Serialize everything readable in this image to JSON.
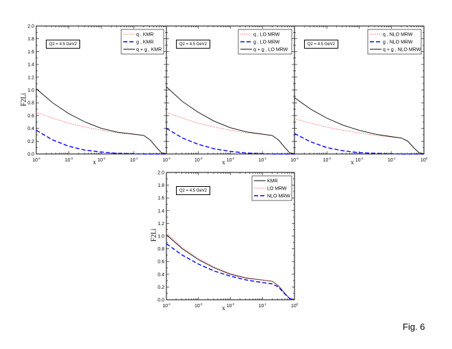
{
  "figure_label": "Fig. 6",
  "chart_data": [
    {
      "type": "line",
      "xscale": "log",
      "xlim": [
        0.0001,
        1
      ],
      "ylim": [
        0,
        2.0
      ],
      "xlabel": "x",
      "ylabel": "F2Li",
      "x_ticks": [
        "10-4",
        "10-3",
        "10-2",
        "10-1"
      ],
      "y_ticks": [
        "0.0",
        "0.2",
        "0.4",
        "0.6",
        "0.8",
        "1.0",
        "1.2",
        "1.4",
        "1.6",
        "1.8",
        "2.0"
      ],
      "annotation": "Q2 = 4.5 GeV2",
      "legend_position": "top-right",
      "x": [
        0.0001,
        0.000316,
        0.001,
        0.00316,
        0.01,
        0.0316,
        0.1,
        0.2,
        0.316,
        0.5,
        0.7,
        1
      ],
      "series": [
        {
          "name": "q , KMR",
          "color": "#ff5050",
          "style": "dotted",
          "values": [
            0.65,
            0.56,
            0.48,
            0.42,
            0.37,
            0.33,
            0.305,
            0.29,
            0.22,
            0.1,
            0.02,
            0
          ]
        },
        {
          "name": "g , KMR",
          "color": "#0000ff",
          "style": "dashed",
          "values": [
            0.37,
            0.22,
            0.12,
            0.06,
            0.03,
            0.01,
            0.003,
            0,
            0,
            0,
            0,
            0
          ]
        },
        {
          "name": "q + g , KMR",
          "color": "#000000",
          "style": "solid",
          "values": [
            1.02,
            0.8,
            0.63,
            0.5,
            0.4,
            0.34,
            0.31,
            0.29,
            0.22,
            0.1,
            0.02,
            0
          ]
        }
      ]
    },
    {
      "type": "line",
      "xscale": "log",
      "xlim": [
        0.0001,
        1
      ],
      "ylim": [
        0,
        2.0
      ],
      "xlabel": "x",
      "x_ticks": [
        "10-4",
        "10-3",
        "10-2",
        "10-1"
      ],
      "annotation": "Q2 = 4.5 GeV2",
      "legend_position": "top-right",
      "x": [
        0.0001,
        0.000316,
        0.001,
        0.00316,
        0.01,
        0.0316,
        0.1,
        0.2,
        0.316,
        0.5,
        0.7,
        1
      ],
      "series": [
        {
          "name": "q , LO MRW",
          "color": "#ff5050",
          "style": "dotted",
          "values": [
            0.65,
            0.56,
            0.48,
            0.42,
            0.37,
            0.33,
            0.305,
            0.29,
            0.22,
            0.1,
            0.02,
            0
          ]
        },
        {
          "name": "g , LO MRW",
          "color": "#0000ff",
          "style": "dashed",
          "values": [
            0.4,
            0.25,
            0.15,
            0.08,
            0.04,
            0.015,
            0.005,
            0,
            0,
            0,
            0,
            0
          ]
        },
        {
          "name": "q + g , LO MRW",
          "color": "#000000",
          "style": "solid",
          "values": [
            1.05,
            0.82,
            0.65,
            0.51,
            0.41,
            0.345,
            0.31,
            0.29,
            0.22,
            0.1,
            0.02,
            0
          ]
        }
      ]
    },
    {
      "type": "line",
      "xscale": "log",
      "xlim": [
        0.0001,
        1
      ],
      "ylim": [
        0,
        2.0
      ],
      "xlabel": "x",
      "x_ticks": [
        "10-4",
        "10-3",
        "10-2",
        "10-1",
        "100"
      ],
      "annotation": "Q2 = 4.5 GeV2",
      "legend_position": "top-right",
      "x": [
        0.0001,
        0.000316,
        0.001,
        0.00316,
        0.01,
        0.0316,
        0.1,
        0.2,
        0.316,
        0.5,
        0.7,
        1
      ],
      "series": [
        {
          "name": "q , NLO MRW",
          "color": "#ff5050",
          "style": "dotted",
          "values": [
            0.55,
            0.48,
            0.42,
            0.37,
            0.33,
            0.29,
            0.265,
            0.25,
            0.2,
            0.09,
            0.02,
            0
          ]
        },
        {
          "name": "g , NLO MRW",
          "color": "#0000ff",
          "style": "dashed",
          "values": [
            0.32,
            0.19,
            0.1,
            0.05,
            0.02,
            0.01,
            0.003,
            0,
            0,
            0,
            0,
            0
          ]
        },
        {
          "name": "q + g , NLO MRW",
          "color": "#000000",
          "style": "solid",
          "values": [
            0.88,
            0.7,
            0.56,
            0.45,
            0.37,
            0.31,
            0.27,
            0.25,
            0.2,
            0.09,
            0.02,
            0
          ]
        }
      ]
    },
    {
      "type": "line",
      "xscale": "log",
      "xlim": [
        0.0001,
        1
      ],
      "ylim": [
        0,
        2.0
      ],
      "xlabel": "x",
      "ylabel": "F2Li",
      "x_ticks": [
        "10-4",
        "10-3",
        "10-2",
        "10-1",
        "100"
      ],
      "y_ticks": [
        "0.0",
        "0.2",
        "0.4",
        "0.6",
        "0.8",
        "1.0",
        "1.2",
        "1.4",
        "1.6",
        "1.8",
        "2.0"
      ],
      "annotation": "Q2 = 4.5 GeV2",
      "legend_position": "top-right",
      "x": [
        0.0001,
        0.000316,
        0.001,
        0.00316,
        0.01,
        0.0316,
        0.1,
        0.2,
        0.316,
        0.5,
        0.7,
        1
      ],
      "series": [
        {
          "name": "KMR",
          "color": "#000000",
          "style": "solid",
          "values": [
            1.02,
            0.8,
            0.63,
            0.5,
            0.4,
            0.34,
            0.31,
            0.29,
            0.22,
            0.1,
            0.02,
            0
          ]
        },
        {
          "name": "LO MRW",
          "color": "#ff5050",
          "style": "dotted",
          "values": [
            1.05,
            0.82,
            0.65,
            0.51,
            0.41,
            0.345,
            0.31,
            0.29,
            0.22,
            0.1,
            0.02,
            0
          ]
        },
        {
          "name": "NLO MRW",
          "color": "#0000ff",
          "style": "dashed",
          "values": [
            0.88,
            0.7,
            0.56,
            0.45,
            0.37,
            0.31,
            0.27,
            0.25,
            0.2,
            0.09,
            0.02,
            0
          ]
        }
      ]
    }
  ]
}
